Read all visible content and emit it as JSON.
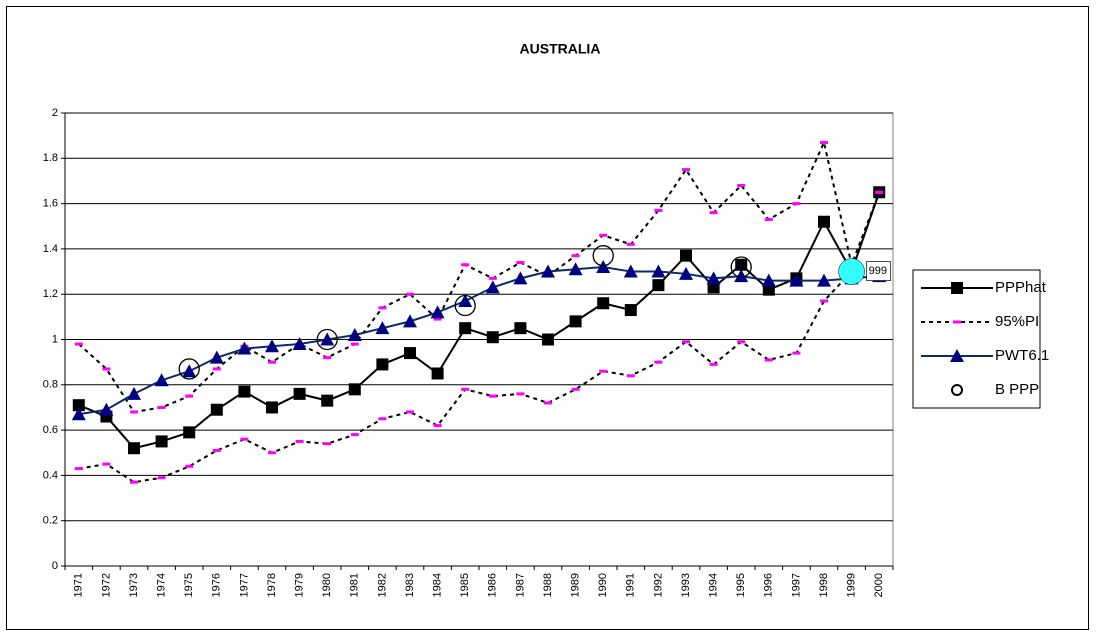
{
  "chart_data": {
    "type": "line",
    "title": "AUSTRALIA",
    "categories": [
      "1971",
      "1972",
      "1973",
      "1974",
      "1975",
      "1976",
      "1977",
      "1978",
      "1979",
      "1980",
      "1981",
      "1982",
      "1983",
      "1984",
      "1985",
      "1986",
      "1987",
      "1988",
      "1989",
      "1990",
      "1991",
      "1992",
      "1993",
      "1994",
      "1995",
      "1996",
      "1997",
      "1998",
      "1999",
      "2000"
    ],
    "ylim": [
      0,
      2
    ],
    "yticks": [
      0,
      0.2,
      0.4,
      0.6,
      0.8,
      1,
      1.2,
      1.4,
      1.6,
      1.8,
      2
    ],
    "grid": true,
    "legend": "right",
    "series": [
      {
        "name": "PPPhat",
        "color": "#000000",
        "marker": "square",
        "style": "solid",
        "values": [
          0.71,
          0.66,
          0.52,
          0.55,
          0.59,
          0.69,
          0.77,
          0.7,
          0.76,
          0.73,
          0.78,
          0.89,
          0.94,
          0.85,
          1.05,
          1.01,
          1.05,
          1.0,
          1.08,
          1.16,
          1.13,
          1.24,
          1.37,
          1.23,
          1.33,
          1.22,
          1.27,
          1.52,
          1.3,
          1.65
        ]
      },
      {
        "name": "95%PI",
        "color": "#000000",
        "marker_color": "#ff00ff",
        "marker": "dash",
        "style": "dashed",
        "values": [
          0.98,
          0.87,
          0.68,
          0.7,
          0.75,
          0.87,
          0.97,
          0.9,
          0.98,
          0.92,
          0.98,
          1.14,
          1.2,
          1.09,
          1.33,
          1.27,
          1.34,
          1.28,
          1.37,
          1.46,
          1.42,
          1.57,
          1.75,
          1.56,
          1.68,
          1.53,
          1.6,
          1.87,
          1.33,
          1.65
        ],
        "lower_values": [
          0.43,
          0.45,
          0.37,
          0.39,
          0.44,
          0.51,
          0.56,
          0.5,
          0.55,
          0.54,
          0.58,
          0.65,
          0.68,
          0.62,
          0.78,
          0.75,
          0.76,
          0.72,
          0.78,
          0.86,
          0.84,
          0.9,
          0.99,
          0.89,
          0.99,
          0.91,
          0.94,
          1.17,
          1.3,
          1.65
        ]
      },
      {
        "name": "PWT6.1",
        "color": "#0a2a6a",
        "marker_color": "#000080",
        "marker": "triangle",
        "style": "solid",
        "values": [
          0.67,
          0.69,
          0.76,
          0.82,
          0.86,
          0.92,
          0.96,
          0.97,
          0.98,
          1.0,
          1.02,
          1.05,
          1.08,
          1.12,
          1.17,
          1.23,
          1.27,
          1.3,
          1.31,
          1.32,
          1.3,
          1.3,
          1.29,
          1.27,
          1.28,
          1.26,
          1.26,
          1.26,
          1.27,
          1.28
        ]
      },
      {
        "name": "B PPP",
        "color": "#000000",
        "marker": "circle",
        "style": "none",
        "values": [
          null,
          null,
          null,
          null,
          0.87,
          null,
          null,
          null,
          null,
          1.0,
          null,
          null,
          null,
          null,
          1.15,
          null,
          null,
          null,
          null,
          1.37,
          null,
          null,
          null,
          null,
          1.32,
          null,
          null,
          null,
          null,
          null
        ]
      }
    ],
    "annotations": [
      {
        "text": "999",
        "x": "1999",
        "y": 1.3,
        "color": "#33ffff"
      }
    ]
  }
}
